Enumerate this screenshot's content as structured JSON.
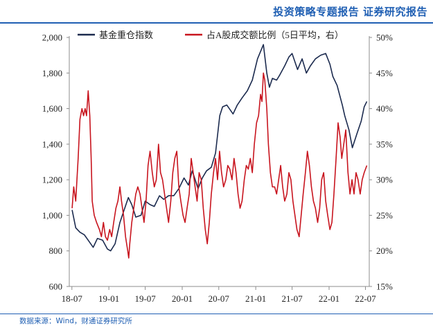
{
  "header": {
    "title": "投资策略专题报告    证券研究报告"
  },
  "footer": {
    "source": "数据来源：Wind，财通证券研究所"
  },
  "chart_data": {
    "type": "line",
    "title": "",
    "x_ticks": [
      "18-07",
      "19-01",
      "19-07",
      "20-01",
      "20-07",
      "21-01",
      "21-07",
      "22-01",
      "22-07"
    ],
    "left_axis": {
      "min": 600,
      "max": 2000,
      "ticks": [
        "600",
        "800",
        "1,000",
        "1,200",
        "1,400",
        "1,600",
        "1,800",
        "2,000"
      ]
    },
    "right_axis": {
      "min": 15,
      "max": 50,
      "ticks": [
        "15%",
        "20%",
        "25%",
        "30%",
        "35%",
        "40%",
        "45%",
        "50%"
      ]
    },
    "legend_position": "top",
    "colors": {
      "fund_index": "#1b2a4e",
      "trade_ratio": "#c8141e"
    },
    "series": [
      {
        "name": "基金重仓指数",
        "axis": "left",
        "points": [
          [
            "2018-07-02",
            1030
          ],
          [
            "2018-07-20",
            930
          ],
          [
            "2018-08-10",
            905
          ],
          [
            "2018-09-01",
            890
          ],
          [
            "2018-09-20",
            860
          ],
          [
            "2018-10-15",
            820
          ],
          [
            "2018-11-05",
            870
          ],
          [
            "2018-12-01",
            860
          ],
          [
            "2018-12-25",
            810
          ],
          [
            "2019-01-10",
            800
          ],
          [
            "2019-02-01",
            840
          ],
          [
            "2019-02-25",
            960
          ],
          [
            "2019-03-15",
            1020
          ],
          [
            "2019-04-08",
            1100
          ],
          [
            "2019-04-25",
            1060
          ],
          [
            "2019-05-15",
            990
          ],
          [
            "2019-06-10",
            1000
          ],
          [
            "2019-07-01",
            1080
          ],
          [
            "2019-07-25",
            1060
          ],
          [
            "2019-08-15",
            1050
          ],
          [
            "2019-09-10",
            1110
          ],
          [
            "2019-10-01",
            1090
          ],
          [
            "2019-10-25",
            1110
          ],
          [
            "2019-11-20",
            1110
          ],
          [
            "2019-12-15",
            1150
          ],
          [
            "2020-01-10",
            1210
          ],
          [
            "2020-02-01",
            1170
          ],
          [
            "2020-02-20",
            1250
          ],
          [
            "2020-03-20",
            1150
          ],
          [
            "2020-04-10",
            1210
          ],
          [
            "2020-05-01",
            1250
          ],
          [
            "2020-05-25",
            1270
          ],
          [
            "2020-06-15",
            1350
          ],
          [
            "2020-07-06",
            1560
          ],
          [
            "2020-07-20",
            1610
          ],
          [
            "2020-08-10",
            1620
          ],
          [
            "2020-09-10",
            1570
          ],
          [
            "2020-10-01",
            1620
          ],
          [
            "2020-10-25",
            1660
          ],
          [
            "2020-11-20",
            1700
          ],
          [
            "2020-12-15",
            1760
          ],
          [
            "2021-01-10",
            1880
          ],
          [
            "2021-02-08",
            1960
          ],
          [
            "2021-02-25",
            1800
          ],
          [
            "2021-03-10",
            1720
          ],
          [
            "2021-03-25",
            1770
          ],
          [
            "2021-04-15",
            1760
          ],
          [
            "2021-05-01",
            1790
          ],
          [
            "2021-05-25",
            1840
          ],
          [
            "2021-06-15",
            1890
          ],
          [
            "2021-07-01",
            1910
          ],
          [
            "2021-07-28",
            1820
          ],
          [
            "2021-08-20",
            1880
          ],
          [
            "2021-09-10",
            1800
          ],
          [
            "2021-09-30",
            1840
          ],
          [
            "2021-10-25",
            1880
          ],
          [
            "2021-11-20",
            1900
          ],
          [
            "2021-12-15",
            1910
          ],
          [
            "2022-01-05",
            1850
          ],
          [
            "2022-01-20",
            1780
          ],
          [
            "2022-02-10",
            1730
          ],
          [
            "2022-03-08",
            1620
          ],
          [
            "2022-03-20",
            1560
          ],
          [
            "2022-04-10",
            1480
          ],
          [
            "2022-04-27",
            1380
          ],
          [
            "2022-05-20",
            1460
          ],
          [
            "2022-06-10",
            1530
          ],
          [
            "2022-06-25",
            1610
          ],
          [
            "2022-07-08",
            1640
          ]
        ]
      },
      {
        "name": "占A股成交额比例（5日平均，右）",
        "axis": "right",
        "points": [
          [
            "2018-07-02",
            26
          ],
          [
            "2018-07-10",
            29
          ],
          [
            "2018-07-20",
            27
          ],
          [
            "2018-08-01",
            33
          ],
          [
            "2018-08-10",
            38.5
          ],
          [
            "2018-08-20",
            40
          ],
          [
            "2018-08-28",
            39
          ],
          [
            "2018-09-05",
            40
          ],
          [
            "2018-09-12",
            39
          ],
          [
            "2018-09-20",
            42.5
          ],
          [
            "2018-09-28",
            39
          ],
          [
            "2018-10-05",
            33
          ],
          [
            "2018-10-10",
            27
          ],
          [
            "2018-10-20",
            25
          ],
          [
            "2018-11-01",
            24
          ],
          [
            "2018-11-15",
            23
          ],
          [
            "2018-11-25",
            22
          ],
          [
            "2018-12-05",
            24
          ],
          [
            "2018-12-15",
            22
          ],
          [
            "2018-12-25",
            21.5
          ],
          [
            "2019-01-05",
            23
          ],
          [
            "2019-01-15",
            22
          ],
          [
            "2019-01-25",
            24
          ],
          [
            "2019-02-05",
            26
          ],
          [
            "2019-02-15",
            27
          ],
          [
            "2019-02-25",
            29
          ],
          [
            "2019-03-05",
            27
          ],
          [
            "2019-03-15",
            25
          ],
          [
            "2019-03-25",
            22
          ],
          [
            "2019-04-05",
            20
          ],
          [
            "2019-04-10",
            19
          ],
          [
            "2019-04-15",
            21
          ],
          [
            "2019-04-25",
            24
          ],
          [
            "2019-05-05",
            26
          ],
          [
            "2019-05-15",
            28
          ],
          [
            "2019-05-25",
            29
          ],
          [
            "2019-06-05",
            28
          ],
          [
            "2019-06-15",
            26
          ],
          [
            "2019-06-25",
            24
          ],
          [
            "2019-07-05",
            27
          ],
          [
            "2019-07-15",
            32
          ],
          [
            "2019-07-25",
            34
          ],
          [
            "2019-08-05",
            31
          ],
          [
            "2019-08-15",
            29
          ],
          [
            "2019-08-25",
            30
          ],
          [
            "2019-09-05",
            35
          ],
          [
            "2019-09-15",
            31
          ],
          [
            "2019-09-25",
            30
          ],
          [
            "2019-10-05",
            28
          ],
          [
            "2019-10-15",
            26
          ],
          [
            "2019-10-25",
            24
          ],
          [
            "2019-11-05",
            27
          ],
          [
            "2019-11-15",
            31
          ],
          [
            "2019-11-25",
            33
          ],
          [
            "2019-12-05",
            34
          ],
          [
            "2019-12-15",
            29
          ],
          [
            "2019-12-25",
            27
          ],
          [
            "2020-01-05",
            25
          ],
          [
            "2020-01-15",
            24
          ],
          [
            "2020-01-25",
            26
          ],
          [
            "2020-02-05",
            28
          ],
          [
            "2020-02-15",
            33
          ],
          [
            "2020-02-25",
            31
          ],
          [
            "2020-03-05",
            29
          ],
          [
            "2020-03-15",
            27
          ],
          [
            "2020-03-25",
            31
          ],
          [
            "2020-04-05",
            30
          ],
          [
            "2020-04-15",
            26
          ],
          [
            "2020-04-25",
            23
          ],
          [
            "2020-05-05",
            21
          ],
          [
            "2020-05-15",
            24
          ],
          [
            "2020-05-25",
            28
          ],
          [
            "2020-06-05",
            31
          ],
          [
            "2020-06-15",
            33
          ],
          [
            "2020-06-25",
            30
          ],
          [
            "2020-07-05",
            34
          ],
          [
            "2020-07-15",
            31
          ],
          [
            "2020-07-25",
            29
          ],
          [
            "2020-08-05",
            30
          ],
          [
            "2020-08-15",
            32
          ],
          [
            "2020-08-25",
            31.5
          ],
          [
            "2020-09-05",
            30
          ],
          [
            "2020-09-15",
            33
          ],
          [
            "2020-09-25",
            31
          ],
          [
            "2020-10-05",
            28
          ],
          [
            "2020-10-15",
            26
          ],
          [
            "2020-10-25",
            27
          ],
          [
            "2020-11-05",
            30
          ],
          [
            "2020-11-15",
            32
          ],
          [
            "2020-11-25",
            31.5
          ],
          [
            "2020-12-05",
            33
          ],
          [
            "2020-12-15",
            31
          ],
          [
            "2020-12-25",
            35
          ],
          [
            "2021-01-05",
            38
          ],
          [
            "2021-01-15",
            39
          ],
          [
            "2021-01-25",
            42
          ],
          [
            "2021-02-01",
            41
          ],
          [
            "2021-02-08",
            45
          ],
          [
            "2021-02-15",
            44
          ],
          [
            "2021-02-25",
            40
          ],
          [
            "2021-03-05",
            35
          ],
          [
            "2021-03-15",
            31
          ],
          [
            "2021-03-25",
            29
          ],
          [
            "2021-04-05",
            29
          ],
          [
            "2021-04-15",
            28
          ],
          [
            "2021-04-25",
            30
          ],
          [
            "2021-05-05",
            32
          ],
          [
            "2021-05-15",
            29
          ],
          [
            "2021-05-25",
            27
          ],
          [
            "2021-06-05",
            28
          ],
          [
            "2021-06-15",
            31
          ],
          [
            "2021-06-25",
            30
          ],
          [
            "2021-07-05",
            27
          ],
          [
            "2021-07-15",
            25
          ],
          [
            "2021-07-25",
            23
          ],
          [
            "2021-08-05",
            22
          ],
          [
            "2021-08-15",
            25
          ],
          [
            "2021-08-25",
            28
          ],
          [
            "2021-09-05",
            31
          ],
          [
            "2021-09-15",
            34
          ],
          [
            "2021-09-25",
            32
          ],
          [
            "2021-10-05",
            29
          ],
          [
            "2021-10-15",
            27
          ],
          [
            "2021-10-25",
            26
          ],
          [
            "2021-11-05",
            24
          ],
          [
            "2021-11-15",
            26
          ],
          [
            "2021-11-25",
            30
          ],
          [
            "2021-12-05",
            31
          ],
          [
            "2021-12-15",
            27
          ],
          [
            "2021-12-25",
            25
          ],
          [
            "2022-01-05",
            23
          ],
          [
            "2022-01-15",
            24
          ],
          [
            "2022-01-25",
            28
          ],
          [
            "2022-02-05",
            33
          ],
          [
            "2022-02-15",
            38
          ],
          [
            "2022-02-25",
            36
          ],
          [
            "2022-03-05",
            33
          ],
          [
            "2022-03-15",
            35
          ],
          [
            "2022-03-25",
            37
          ],
          [
            "2022-04-05",
            31
          ],
          [
            "2022-04-15",
            28
          ],
          [
            "2022-04-25",
            30
          ],
          [
            "2022-05-05",
            28
          ],
          [
            "2022-05-15",
            31
          ],
          [
            "2022-05-25",
            30
          ],
          [
            "2022-06-05",
            28
          ],
          [
            "2022-06-15",
            30
          ],
          [
            "2022-06-25",
            31
          ],
          [
            "2022-07-08",
            32
          ]
        ]
      }
    ]
  }
}
